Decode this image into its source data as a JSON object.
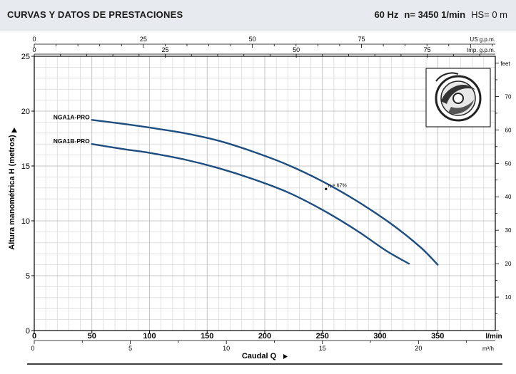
{
  "header": {
    "title": "CURVAS Y DATOS DE PRESTACIONES",
    "frequency": "60 Hz",
    "speed": "n= 3450 1/min",
    "hs": "HS= 0 m"
  },
  "colors": {
    "curve": "#1d4e7f",
    "grid_major": "#b5b5b5",
    "grid_minor": "#d9d9d9",
    "header_bg": "#e7eaee"
  },
  "icon": "pump-impeller-icon",
  "chart_data": {
    "type": "line",
    "xlabel": "Caudal Q",
    "ylabel": "Altura manométrica H (metros)",
    "x_unit": "l/min",
    "xlim": [
      0,
      400
    ],
    "ylim": [
      0,
      25
    ],
    "grid": true,
    "x_ticks": [
      0,
      50,
      100,
      150,
      200,
      250,
      300,
      350
    ],
    "y_ticks": [
      0,
      5,
      10,
      15,
      20,
      25
    ],
    "secondary_axes": {
      "bottom_m3h": {
        "unit": "m³/h",
        "ticks": [
          0,
          5,
          10,
          15,
          20
        ],
        "max": 24
      },
      "top_us_gpm": {
        "unit": "US g.p.m.",
        "ticks": [
          0,
          25,
          50,
          75
        ],
        "max": 105.67
      },
      "top_imp_gpm": {
        "unit": "Imp. g.p.m.",
        "ticks": [
          0,
          25,
          50,
          75
        ],
        "max": 87.99
      },
      "right_feet": {
        "unit": "feet",
        "ticks": [
          10,
          20,
          30,
          40,
          50,
          60,
          70
        ],
        "max": 82.02
      }
    },
    "series": [
      {
        "name": "NGA1A-PRO",
        "x": [
          50,
          80,
          100,
          130,
          160,
          190,
          220,
          250,
          280,
          310,
          335,
          350
        ],
        "y": [
          19.2,
          18.8,
          18.5,
          18.0,
          17.3,
          16.3,
          15.1,
          13.6,
          11.8,
          9.7,
          7.6,
          6.0
        ]
      },
      {
        "name": "NGA1B-PRO",
        "x": [
          50,
          80,
          100,
          130,
          160,
          190,
          220,
          250,
          280,
          305,
          325
        ],
        "y": [
          17.0,
          16.5,
          16.2,
          15.6,
          14.8,
          13.8,
          12.6,
          11.0,
          9.1,
          7.3,
          6.1
        ]
      }
    ],
    "annotations": [
      {
        "text": "η = 67%",
        "x": 255,
        "y": 13.1
      }
    ]
  }
}
